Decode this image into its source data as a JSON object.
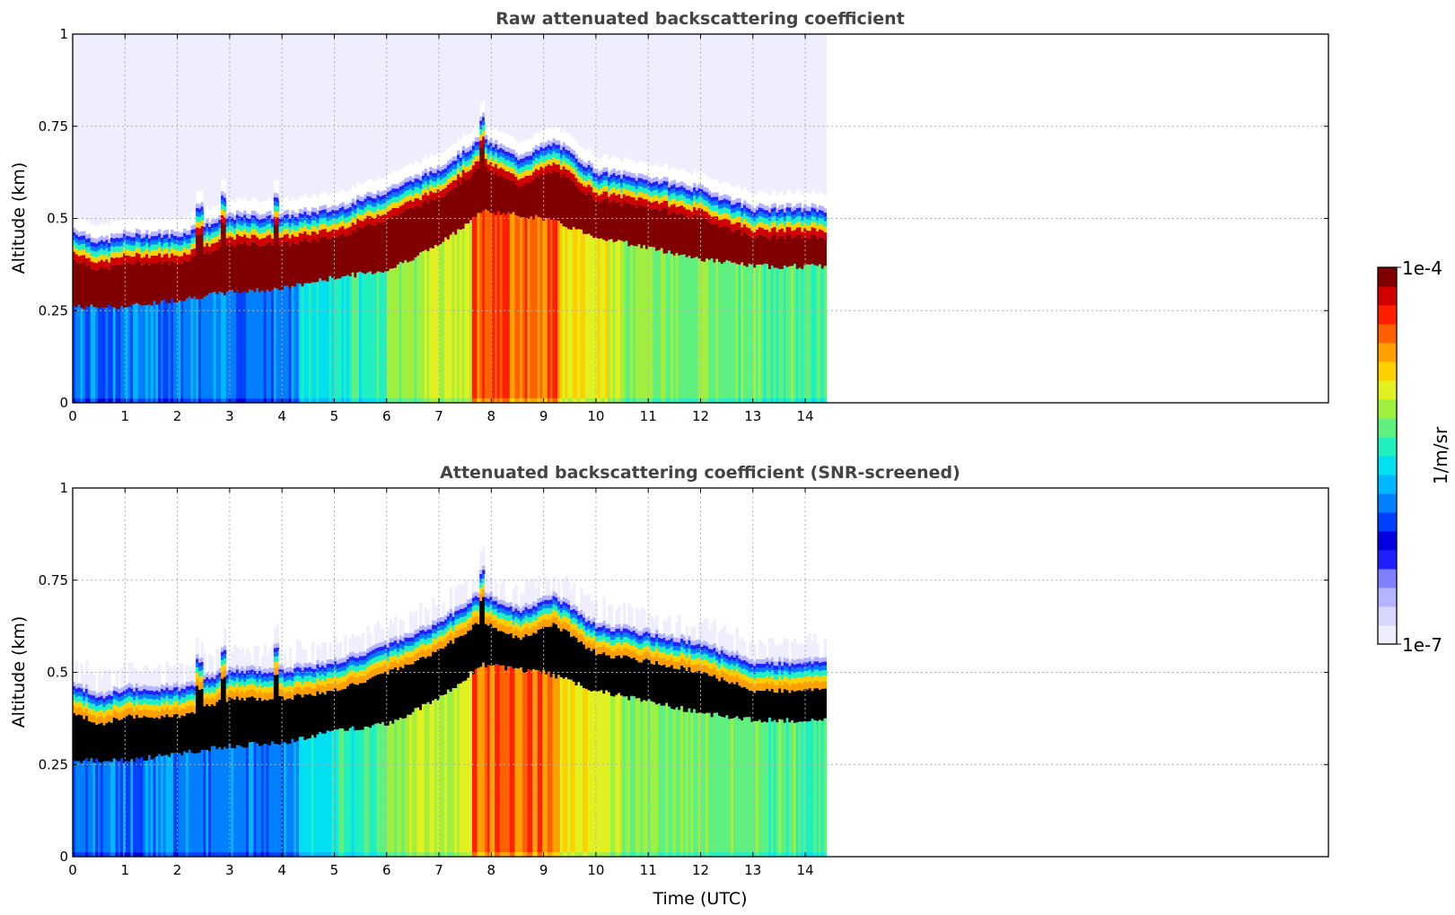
{
  "chart_data": [
    {
      "type": "heatmap",
      "title": "Raw attenuated backscattering coefficient",
      "xlabel": "",
      "ylabel": "Altitude (km)",
      "xlim": [
        0,
        24
      ],
      "ylim": [
        0,
        1
      ],
      "x_ticks": [
        0,
        1,
        2,
        3,
        4,
        5,
        6,
        7,
        8,
        9,
        10,
        11,
        12,
        13,
        14
      ],
      "y_ticks": [
        0,
        0.25,
        0.5,
        0.75,
        1
      ],
      "y_tick_labels": [
        "0",
        "0.25",
        "0.5",
        "0.75",
        "1"
      ],
      "data_end_time": 14.4,
      "grid": true,
      "screened": false,
      "layer_top_km": [
        [
          0,
          0.46
        ],
        [
          0.5,
          0.43
        ],
        [
          1,
          0.45
        ],
        [
          2,
          0.45
        ],
        [
          3,
          0.5
        ],
        [
          4,
          0.5
        ],
        [
          5,
          0.52
        ],
        [
          6,
          0.57
        ],
        [
          7,
          0.63
        ],
        [
          7.8,
          0.71
        ],
        [
          8.5,
          0.66
        ],
        [
          9.2,
          0.7
        ],
        [
          10,
          0.62
        ],
        [
          11,
          0.6
        ],
        [
          12,
          0.57
        ],
        [
          13,
          0.52
        ],
        [
          14.4,
          0.52
        ]
      ],
      "layer_base_km": [
        [
          0,
          0.26
        ],
        [
          1,
          0.26
        ],
        [
          2,
          0.28
        ],
        [
          3,
          0.3
        ],
        [
          4,
          0.31
        ],
        [
          5,
          0.34
        ],
        [
          6,
          0.36
        ],
        [
          7,
          0.43
        ],
        [
          7.8,
          0.52
        ],
        [
          9,
          0.5
        ],
        [
          10,
          0.45
        ],
        [
          11,
          0.42
        ],
        [
          12,
          0.39
        ],
        [
          13,
          0.37
        ],
        [
          14.4,
          0.37
        ]
      ]
    },
    {
      "type": "heatmap",
      "title": "Attenuated backscattering coefficient (SNR-screened)",
      "xlabel": "Time (UTC)",
      "ylabel": "Altitude (km)",
      "xlim": [
        0,
        24
      ],
      "ylim": [
        0,
        1
      ],
      "x_ticks": [
        0,
        1,
        2,
        3,
        4,
        5,
        6,
        7,
        8,
        9,
        10,
        11,
        12,
        13,
        14
      ],
      "y_ticks": [
        0,
        0.25,
        0.5,
        0.75,
        1
      ],
      "y_tick_labels": [
        "0",
        "0.25",
        "0.5",
        "0.75",
        "1"
      ],
      "data_end_time": 14.4,
      "grid": true,
      "screened": true
    }
  ],
  "colorbar": {
    "label": "1/m/sr",
    "min_label": "1e-7",
    "max_label": "1e-4",
    "colors": [
      "#eeeeff",
      "#d6d6ff",
      "#b4b4ff",
      "#8080ff",
      "#2020ff",
      "#0000e0",
      "#0040ff",
      "#0080ff",
      "#00b8ff",
      "#00e0f0",
      "#20f0c0",
      "#60f080",
      "#a0f040",
      "#e0f020",
      "#ffd000",
      "#ffa000",
      "#ff6000",
      "#ff2000",
      "#d00000",
      "#800000"
    ]
  }
}
